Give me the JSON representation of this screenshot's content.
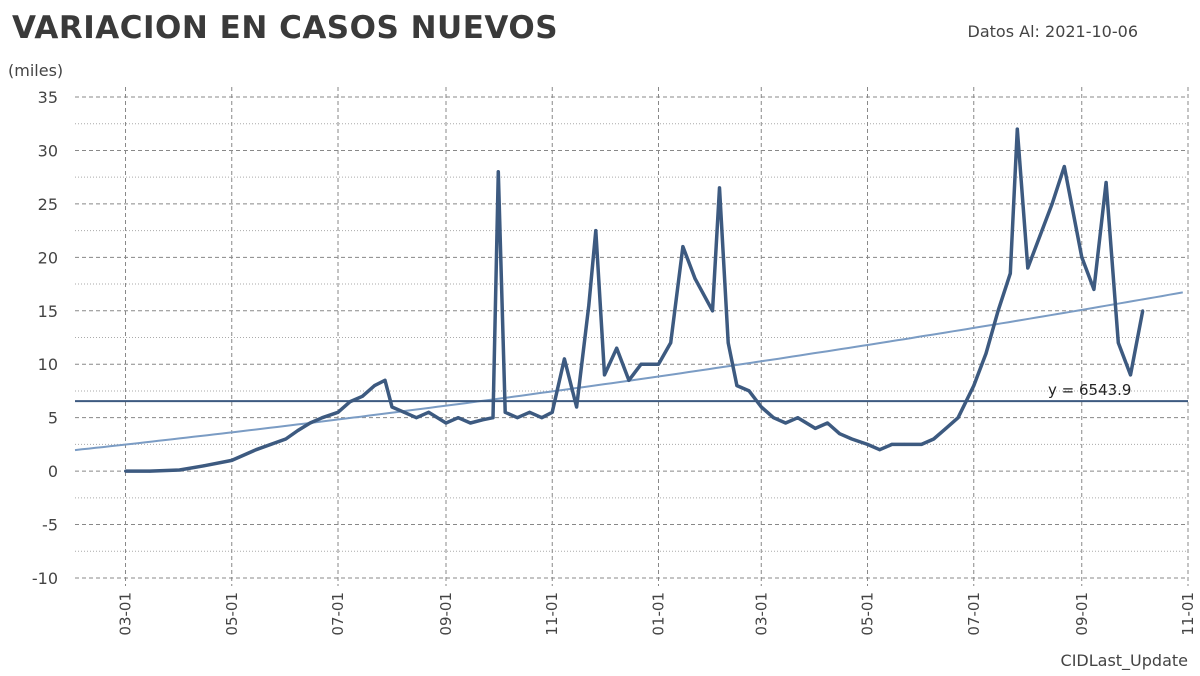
{
  "header": {
    "title": "VARIACION EN CASOS NUEVOS",
    "date_label": "Datos Al: 2021-10-06",
    "unit_label": "(miles)",
    "footer_label": "CIDLast_Update"
  },
  "colors": {
    "series": "#3d5a80",
    "trend": "#7b9cc4",
    "mean_line": "#3d5a80",
    "grid": "#888888",
    "text": "#444444"
  },
  "chart_data": {
    "type": "line",
    "title": "VARIACION EN CASOS NUEVOS",
    "ylabel": "(miles)",
    "xlabel": "",
    "ylim": [
      -10,
      35
    ],
    "yticks": [
      35,
      30,
      25,
      20,
      15,
      10,
      5,
      0,
      -5,
      -10
    ],
    "xlim": [
      "2020-02-01",
      "2021-11-01"
    ],
    "xticks": [
      {
        "date": "2020-03-01",
        "label": "03-01"
      },
      {
        "date": "2020-05-01",
        "label": "05-01"
      },
      {
        "date": "2020-07-01",
        "label": "07-01"
      },
      {
        "date": "2020-09-01",
        "label": "09-01"
      },
      {
        "date": "2020-11-01",
        "label": "11-01"
      },
      {
        "date": "2021-01-01",
        "label": "01-01"
      },
      {
        "date": "2021-03-01",
        "label": "03-01"
      },
      {
        "date": "2021-05-01",
        "label": "05-01"
      },
      {
        "date": "2021-07-01",
        "label": "07-01"
      },
      {
        "date": "2021-09-01",
        "label": "09-01"
      },
      {
        "date": "2021-11-01",
        "label": "11-01"
      }
    ],
    "grid": true,
    "series": [
      {
        "x": [
          "2020-03-01",
          "2020-03-15",
          "2020-04-01",
          "2020-04-15",
          "2020-05-01",
          "2020-05-15",
          "2020-06-01",
          "2020-06-08",
          "2020-06-15",
          "2020-06-22",
          "2020-07-01",
          "2020-07-08",
          "2020-07-15",
          "2020-07-22",
          "2020-07-28",
          "2020-08-01",
          "2020-08-08",
          "2020-08-15",
          "2020-08-22",
          "2020-09-01",
          "2020-09-08",
          "2020-09-15",
          "2020-09-22",
          "2020-09-28",
          "2020-10-01",
          "2020-10-05",
          "2020-10-12",
          "2020-10-19",
          "2020-10-26",
          "2020-11-01",
          "2020-11-08",
          "2020-11-15",
          "2020-11-22",
          "2020-11-26",
          "2020-12-01",
          "2020-12-08",
          "2020-12-15",
          "2020-12-22",
          "2021-01-01",
          "2021-01-08",
          "2021-01-15",
          "2021-01-22",
          "2021-02-01",
          "2021-02-05",
          "2021-02-10",
          "2021-02-15",
          "2021-02-22",
          "2021-03-01",
          "2021-03-08",
          "2021-03-15",
          "2021-03-22",
          "2021-04-01",
          "2021-04-08",
          "2021-04-15",
          "2021-04-22",
          "2021-05-01",
          "2021-05-08",
          "2021-05-15",
          "2021-05-22",
          "2021-06-01",
          "2021-06-08",
          "2021-06-15",
          "2021-06-22",
          "2021-07-01",
          "2021-07-08",
          "2021-07-15",
          "2021-07-22",
          "2021-07-26",
          "2021-08-01",
          "2021-08-08",
          "2021-08-15",
          "2021-08-22",
          "2021-09-01",
          "2021-09-08",
          "2021-09-15",
          "2021-09-22",
          "2021-09-29",
          "2021-10-06"
        ],
        "y": [
          0,
          0,
          0.1,
          0.5,
          1.0,
          2.0,
          3.0,
          3.8,
          4.5,
          5.0,
          5.5,
          6.5,
          7.0,
          8.0,
          8.5,
          6.0,
          5.5,
          5.0,
          5.5,
          4.5,
          5.0,
          4.5,
          4.8,
          5.0,
          28.0,
          5.5,
          5.0,
          5.5,
          5.0,
          5.5,
          10.5,
          6.0,
          15.5,
          22.5,
          9.0,
          11.5,
          8.5,
          10.0,
          10.0,
          12.0,
          21.0,
          18.0,
          15.0,
          26.5,
          12.0,
          8.0,
          7.5,
          6.0,
          5.0,
          4.5,
          5.0,
          4.0,
          4.5,
          3.5,
          3.0,
          2.5,
          2.0,
          2.5,
          2.5,
          2.5,
          3.0,
          4.0,
          5.0,
          8.0,
          11.0,
          15.0,
          18.5,
          32.0,
          19.0,
          22.0,
          25.0,
          28.5,
          20.0,
          17.0,
          27.0,
          12.0,
          9.0,
          15.0
        ]
      }
    ],
    "mean_value": 6543.9,
    "mean_label": "y = 6543.9"
  }
}
